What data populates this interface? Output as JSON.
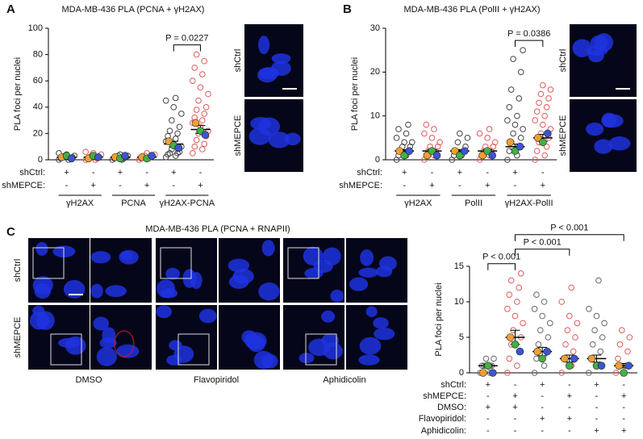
{
  "chart_data": [
    {
      "type": "dotplot",
      "panel": "A",
      "title": "MDA-MB-436 PLA (PCNA + γH2AX)",
      "y_label": "PLA foci per nuclei",
      "ylim": [
        0,
        100
      ],
      "yticks": [
        0,
        20,
        40,
        60,
        80,
        100
      ],
      "conditions": [
        {
          "name": "shCtrl:",
          "values": [
            "+",
            "-",
            "+",
            "-",
            "+",
            "-"
          ]
        },
        {
          "name": "shMEPCE:",
          "values": [
            "-",
            "+",
            "-",
            "+",
            "-",
            "+"
          ]
        }
      ],
      "groups": [
        "γH2AX",
        "PCNA",
        "γH2AX-PCNA"
      ],
      "point_colors": [
        "#444444",
        "#e05a5a",
        "#444444",
        "#e05a5a",
        "#444444",
        "#e05a5a"
      ],
      "points": [
        [
          0,
          0,
          1,
          1,
          2,
          2,
          3,
          3,
          4,
          5
        ],
        [
          0,
          0,
          1,
          1,
          2,
          2,
          3,
          4,
          5,
          6
        ],
        [
          0,
          0,
          1,
          1,
          2,
          2,
          3,
          3,
          4
        ],
        [
          0,
          1,
          1,
          2,
          2,
          3,
          3,
          4,
          5
        ],
        [
          2,
          3,
          4,
          5,
          5,
          6,
          8,
          10,
          12,
          14,
          16,
          18,
          20,
          22,
          25,
          30,
          35,
          40,
          45,
          47
        ],
        [
          5,
          8,
          10,
          12,
          15,
          18,
          20,
          22,
          25,
          28,
          30,
          32,
          35,
          38,
          40,
          45,
          50,
          55,
          60,
          65,
          70,
          75,
          80
        ]
      ],
      "means": [
        2,
        2,
        2,
        2,
        12,
        23
      ],
      "errors": [
        0.5,
        0.5,
        0.5,
        0.5,
        2,
        3
      ],
      "replicate_colors": [
        "#f0a030",
        "#44b044",
        "#3d55d0"
      ],
      "replicates": [
        [
          2,
          3,
          1
        ],
        [
          1,
          3,
          2
        ],
        [
          2,
          1,
          3
        ],
        [
          2,
          1,
          3
        ],
        [
          14,
          11,
          9
        ],
        [
          28,
          22,
          19
        ]
      ],
      "comparisons": [
        {
          "cols": [
            4,
            5
          ],
          "label": "P = 0.0227"
        }
      ]
    },
    {
      "type": "dotplot",
      "panel": "B",
      "title": "MDA-MB-436 PLA (PolII + γH2AX)",
      "y_label": "PLA foci per nuclei",
      "ylim": [
        0,
        30
      ],
      "yticks": [
        0,
        10,
        20,
        30
      ],
      "conditions": [
        {
          "name": "shCtrl:",
          "values": [
            "+",
            "-",
            "+",
            "-",
            "+",
            "-"
          ]
        },
        {
          "name": "shMEPCE:",
          "values": [
            "-",
            "+",
            "-",
            "+",
            "-",
            "+"
          ]
        }
      ],
      "groups": [
        "γH2AX",
        "PolII",
        "γH2AX-PolII"
      ],
      "point_colors": [
        "#444444",
        "#e05a5a",
        "#444444",
        "#e05a5a",
        "#444444",
        "#e05a5a"
      ],
      "points": [
        [
          0,
          1,
          1,
          2,
          2,
          3,
          3,
          4,
          4,
          5,
          6,
          7,
          8
        ],
        [
          0,
          1,
          1,
          2,
          2,
          3,
          3,
          4,
          5,
          6,
          7,
          8
        ],
        [
          0,
          1,
          1,
          2,
          2,
          3,
          4,
          5,
          6
        ],
        [
          0,
          1,
          1,
          2,
          2,
          3,
          3,
          4,
          5,
          6,
          7
        ],
        [
          0,
          1,
          2,
          3,
          4,
          5,
          6,
          7,
          8,
          9,
          10,
          12,
          14,
          16,
          20,
          23,
          25
        ],
        [
          0,
          1,
          2,
          3,
          4,
          5,
          6,
          7,
          8,
          9,
          10,
          11,
          12,
          13,
          14,
          15,
          16,
          17
        ]
      ],
      "means": [
        2,
        2,
        2,
        2,
        3,
        5
      ],
      "errors": [
        0.3,
        0.3,
        0.3,
        0.3,
        0.6,
        0.8
      ],
      "replicate_colors": [
        "#f0a030",
        "#44b044",
        "#3d55d0"
      ],
      "replicates": [
        [
          2,
          1,
          2
        ],
        [
          1,
          2,
          1
        ],
        [
          2,
          1,
          2
        ],
        [
          1,
          2,
          1
        ],
        [
          4,
          2,
          3
        ],
        [
          5,
          4,
          6
        ]
      ],
      "comparisons": [
        {
          "cols": [
            4,
            5
          ],
          "label": "P = 0.0386"
        }
      ]
    },
    {
      "type": "dotplot",
      "panel": "C",
      "y_label": "PLA foci per nuclei",
      "ylim": [
        0,
        15
      ],
      "yticks": [
        0,
        5,
        10,
        15
      ],
      "conditions": [
        {
          "name": "shCtrl:",
          "values": [
            "+",
            "-",
            "+",
            "-",
            "+",
            "-"
          ]
        },
        {
          "name": "shMEPCE:",
          "values": [
            "-",
            "+",
            "-",
            "+",
            "-",
            "+"
          ]
        },
        {
          "name": "DMSO:",
          "values": [
            "+",
            "+",
            "-",
            "-",
            "-",
            "-"
          ]
        },
        {
          "name": "Flavopiridol:",
          "values": [
            "-",
            "-",
            "+",
            "+",
            "-",
            "-"
          ]
        },
        {
          "name": "Aphidicolin:",
          "values": [
            "-",
            "-",
            "-",
            "-",
            "+",
            "+"
          ]
        }
      ],
      "point_colors": [
        "#666666",
        "#e05a5a",
        "#666666",
        "#e05a5a",
        "#666666",
        "#e05a5a"
      ],
      "points": [
        [
          0,
          0,
          1,
          1,
          1,
          2,
          2
        ],
        [
          0,
          1,
          2,
          3,
          4,
          5,
          6,
          7,
          8,
          9,
          10,
          11,
          12,
          13,
          14
        ],
        [
          0,
          1,
          2,
          3,
          4,
          5,
          6,
          7,
          8,
          9,
          10,
          11
        ],
        [
          0,
          1,
          2,
          3,
          4,
          5,
          6,
          7,
          8,
          10,
          12
        ],
        [
          0,
          1,
          2,
          3,
          4,
          5,
          6,
          7,
          8,
          9,
          13
        ],
        [
          0,
          1,
          2,
          3,
          4,
          5,
          6
        ]
      ],
      "means": [
        1,
        5,
        3,
        2,
        2,
        1
      ],
      "errors": [
        0.2,
        1,
        0.6,
        0.5,
        0.5,
        0.3
      ],
      "replicate_colors": [
        "#f0a030",
        "#44b044",
        "#3d55d0"
      ],
      "replicates": [
        [
          0,
          1,
          0
        ],
        [
          5,
          4,
          3
        ],
        [
          3,
          2,
          3
        ],
        [
          2,
          1,
          2
        ],
        [
          2,
          1,
          1
        ],
        [
          1,
          0,
          1
        ]
      ],
      "comparisons": [
        {
          "cols": [
            0,
            1
          ],
          "label": "P < 0.001"
        },
        {
          "cols": [
            1,
            3
          ],
          "label": "P < 0.001"
        },
        {
          "cols": [
            1,
            5
          ],
          "label": "P < 0.001"
        }
      ]
    }
  ],
  "image_labels": {
    "A": {
      "rows": [
        "shCtrl",
        "shMEPCE"
      ]
    },
    "B": {
      "rows": [
        "shCtrl",
        "shMEPCE"
      ]
    },
    "C": {
      "title": "MDA-MB-436  PLA (PCNA + RNAPII)",
      "rows": [
        "shCtrl",
        "shMEPCE"
      ],
      "columns": [
        "DMSO",
        "Flavopiridol",
        "Aphidicolin"
      ]
    }
  }
}
